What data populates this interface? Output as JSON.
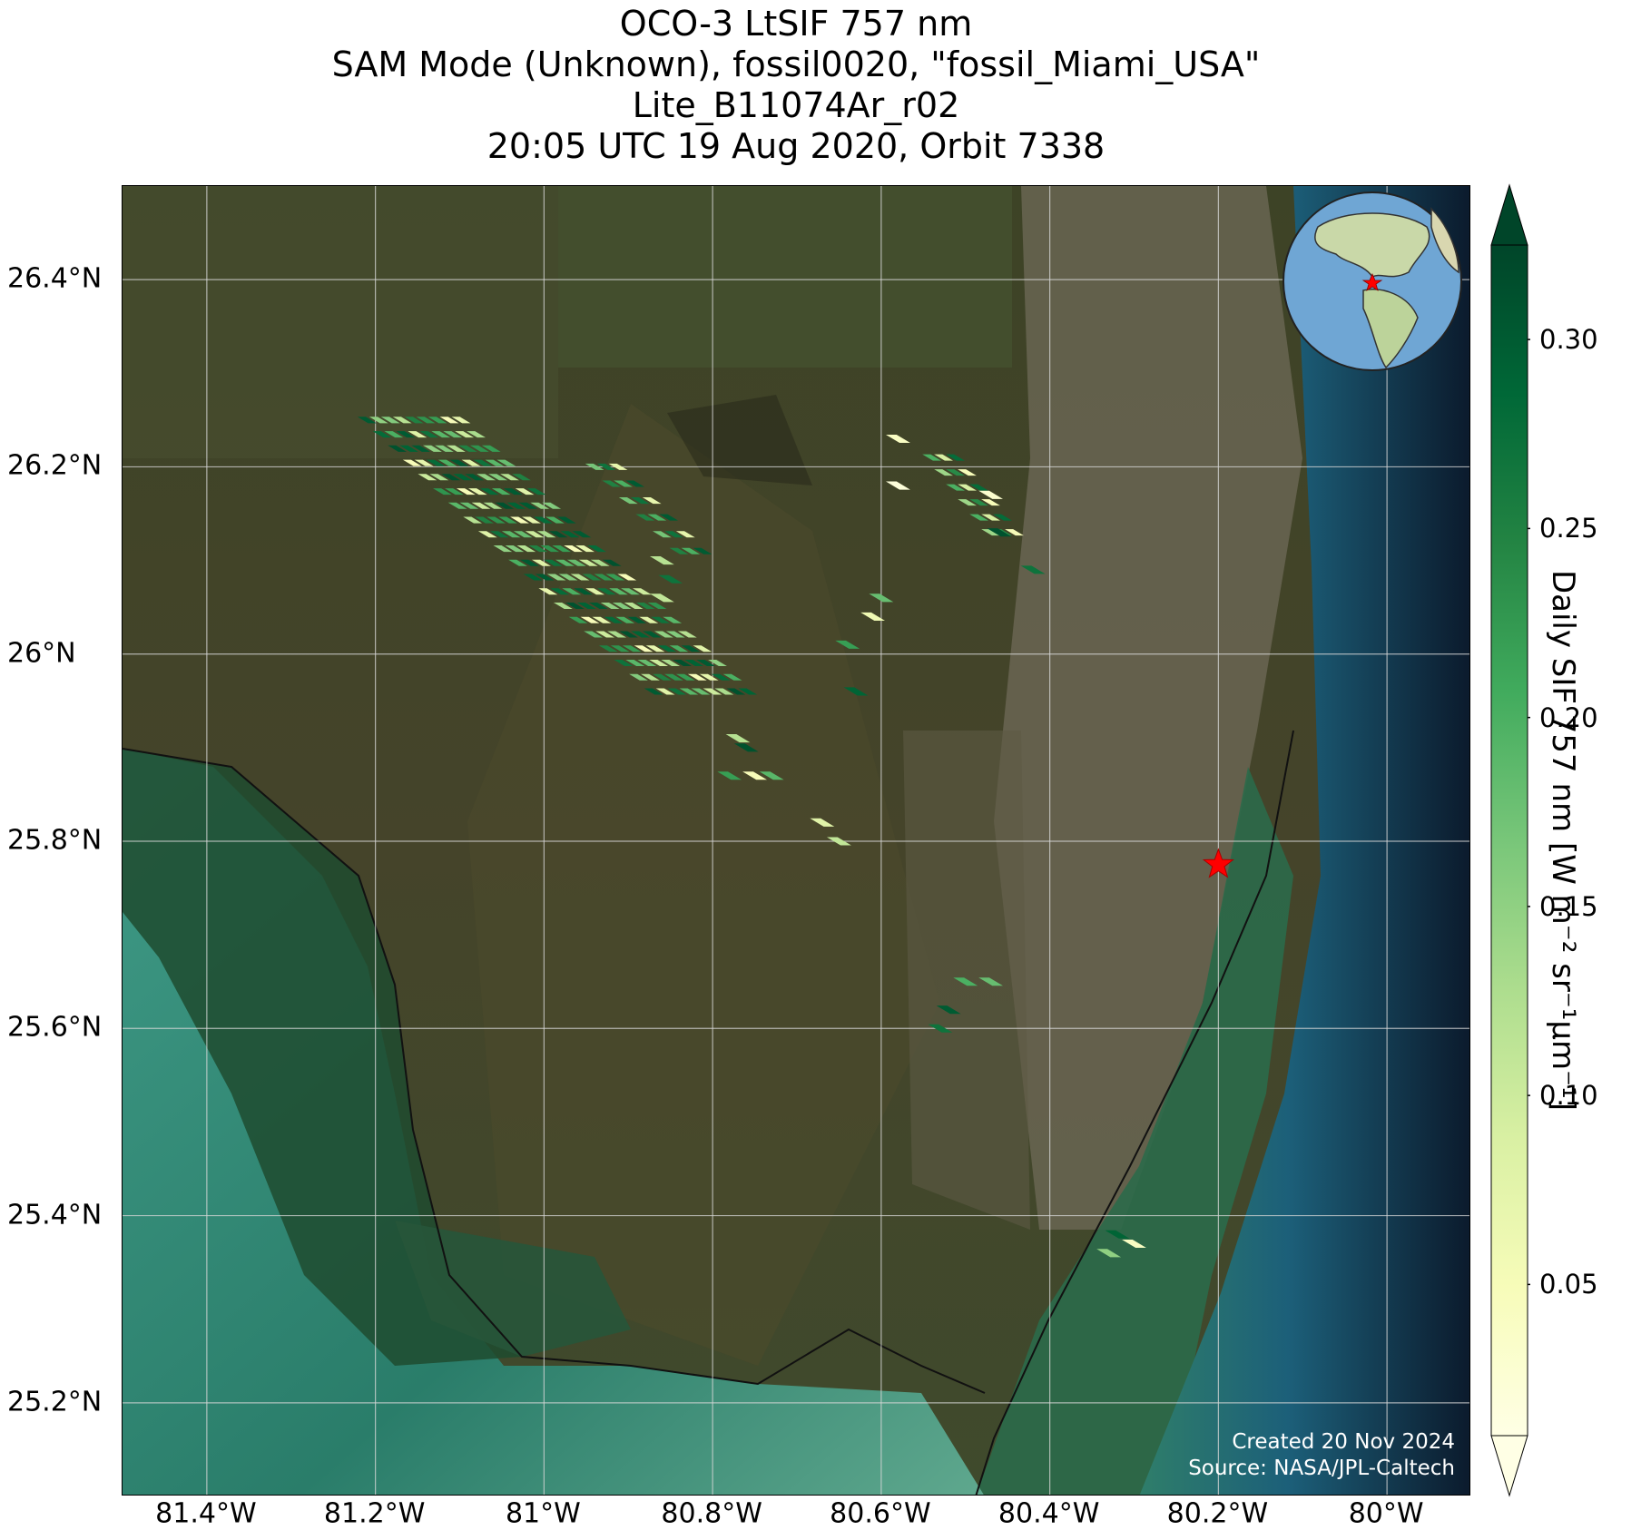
{
  "titles": [
    "OCO-3 LtSIF 757 nm",
    "SAM Mode (Unknown), fossil0020, \"fossil_Miami_USA\"",
    "Lite_B11074Ar_r02",
    "20:05 UTC 19 Aug 2020, Orbit 7338"
  ],
  "map": {
    "lon_range": [
      -81.5,
      -79.9
    ],
    "lat_range": [
      25.1,
      26.5
    ],
    "basemap": "satellite-imagery",
    "grid": true,
    "colors": {
      "land": "#3e3f27",
      "wetland": "#4b4a2c",
      "ocean_shallow": "#2f7e6a",
      "ocean_deep": "#0b1a2c",
      "city": "#7a7566"
    },
    "target_marker": {
      "icon": "red-star-icon",
      "lon": -80.2,
      "lat": 25.775,
      "color": "#ff0000"
    },
    "credit": {
      "created": "Created 20 Nov 2024",
      "source": "Source: NASA/JPL-Caltech"
    },
    "inset": {
      "type": "globe",
      "icon": "globe-icon"
    }
  },
  "x_ticks": [
    {
      "value": -81.4,
      "label": "81.4°W"
    },
    {
      "value": -81.2,
      "label": "81.2°W"
    },
    {
      "value": -81.0,
      "label": "81°W"
    },
    {
      "value": -80.8,
      "label": "80.8°W"
    },
    {
      "value": -80.6,
      "label": "80.6°W"
    },
    {
      "value": -80.4,
      "label": "80.4°W"
    },
    {
      "value": -80.2,
      "label": "80.2°W"
    },
    {
      "value": -80.0,
      "label": "80°W"
    }
  ],
  "y_ticks": [
    {
      "value": 26.4,
      "label": "26.4°N"
    },
    {
      "value": 26.2,
      "label": "26.2°N"
    },
    {
      "value": 26.0,
      "label": "26°N"
    },
    {
      "value": 25.8,
      "label": "25.8°N"
    },
    {
      "value": 25.6,
      "label": "25.6°N"
    },
    {
      "value": 25.4,
      "label": "25.4°N"
    },
    {
      "value": 25.2,
      "label": "25.2°N"
    }
  ],
  "colorbar": {
    "title": "Daily SIF 757 nm [W m⁻² sr⁻¹μm⁻¹]",
    "range": [
      0.01,
      0.325
    ],
    "extend": "both",
    "colormap": [
      "#ffffe5",
      "#f7fcb9",
      "#d9f0a3",
      "#addd8e",
      "#78c679",
      "#41ab5d",
      "#238443",
      "#006837",
      "#004529"
    ],
    "ticks": [
      {
        "value": 0.05,
        "label": "0.05"
      },
      {
        "value": 0.1,
        "label": "0.10"
      },
      {
        "value": 0.15,
        "label": "0.15"
      },
      {
        "value": 0.2,
        "label": "0.20"
      },
      {
        "value": 0.25,
        "label": "0.25"
      },
      {
        "value": 0.3,
        "label": "0.30"
      }
    ]
  },
  "soundings": {
    "swaths": [
      {
        "name": "main-swath",
        "start": [
          -81.21,
          26.25
        ],
        "end": [
          -80.87,
          25.96
        ],
        "rows": 9,
        "cols": 20,
        "pitch": 0.0155,
        "values": [
          0.3,
          0.12,
          0.22,
          0.28,
          0.08,
          0.18,
          0.31,
          0.15,
          0.25,
          0.05,
          0.2,
          0.27,
          0.1,
          0.29,
          0.16,
          0.23,
          0.07,
          0.3,
          0.19,
          0.13
        ]
      },
      {
        "name": "upper-swath",
        "start": [
          -80.94,
          26.2
        ],
        "end": [
          -80.84,
          26.11
        ],
        "rows": 3,
        "cols": 6,
        "pitch": 0.0155,
        "values": [
          0.17,
          0.27,
          0.07,
          0.25,
          0.2,
          0.3
        ]
      },
      {
        "name": "east-swath",
        "start": [
          -80.54,
          26.21
        ],
        "end": [
          -80.47,
          26.13
        ],
        "rows": 3,
        "cols": 6,
        "pitch": 0.0155,
        "values": [
          0.2,
          0.09,
          0.28,
          0.14,
          0.24,
          0.05
        ]
      }
    ],
    "fragments": [
      {
        "lon": -80.86,
        "lat": 26.1,
        "value": 0.12
      },
      {
        "lon": -80.85,
        "lat": 26.08,
        "value": 0.27
      },
      {
        "lon": -80.86,
        "lat": 26.06,
        "value": 0.11
      },
      {
        "lon": -80.58,
        "lat": 26.23,
        "value": 0.04
      },
      {
        "lon": -80.58,
        "lat": 26.18,
        "value": 0.02
      },
      {
        "lon": -80.47,
        "lat": 26.17,
        "value": 0.03
      },
      {
        "lon": -80.46,
        "lat": 26.13,
        "value": 0.31
      },
      {
        "lon": -80.42,
        "lat": 26.09,
        "value": 0.27
      },
      {
        "lon": -80.6,
        "lat": 26.06,
        "value": 0.18
      },
      {
        "lon": -80.61,
        "lat": 26.04,
        "value": 0.06
      },
      {
        "lon": -80.64,
        "lat": 26.01,
        "value": 0.22
      },
      {
        "lon": -80.63,
        "lat": 25.96,
        "value": 0.29
      },
      {
        "lon": -80.77,
        "lat": 25.91,
        "value": 0.12
      },
      {
        "lon": -80.76,
        "lat": 25.9,
        "value": 0.31
      },
      {
        "lon": -80.78,
        "lat": 25.87,
        "value": 0.22
      },
      {
        "lon": -80.75,
        "lat": 25.87,
        "value": 0.05
      },
      {
        "lon": -80.73,
        "lat": 25.87,
        "value": 0.19
      },
      {
        "lon": -80.67,
        "lat": 25.82,
        "value": 0.08
      },
      {
        "lon": -80.65,
        "lat": 25.8,
        "value": 0.11
      },
      {
        "lon": -80.5,
        "lat": 25.65,
        "value": 0.2
      },
      {
        "lon": -80.47,
        "lat": 25.65,
        "value": 0.18
      },
      {
        "lon": -80.52,
        "lat": 25.62,
        "value": 0.3
      },
      {
        "lon": -80.53,
        "lat": 25.6,
        "value": 0.27
      },
      {
        "lon": -80.32,
        "lat": 25.38,
        "value": 0.29
      },
      {
        "lon": -80.3,
        "lat": 25.37,
        "value": 0.04
      },
      {
        "lon": -80.33,
        "lat": 25.36,
        "value": 0.15
      }
    ]
  }
}
